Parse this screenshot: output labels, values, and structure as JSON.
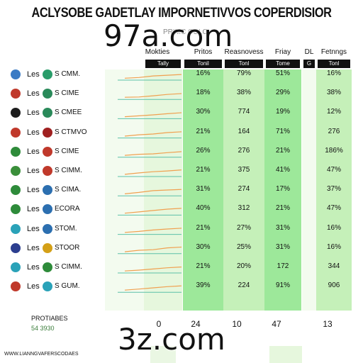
{
  "chart_data": {
    "type": "table",
    "title": "ACLYSOBE GADETLAY IMPORNETIVVOS COPERDISIOR",
    "subtitle": "PRIMC COLO",
    "columns": [
      {
        "header": "Mokties",
        "subheader": "Tally"
      },
      {
        "header": "Pritos",
        "subheader": "Tonil"
      },
      {
        "header": "Reasnovess",
        "subheader": "Tonl"
      },
      {
        "header": "Friay",
        "subheader": "Tome"
      },
      {
        "header": "DL",
        "subheader": "G"
      },
      {
        "header": "Fetnngs",
        "subheader": "Tonl"
      }
    ],
    "rows": [
      {
        "les": "Les",
        "team": "S CMM.",
        "trend": [
          0.05,
          0.12,
          0.28,
          0.35,
          0.42
        ],
        "vals": [
          "16%",
          "79%",
          "51%",
          "16%"
        ]
      },
      {
        "les": "Les",
        "team": "S CIME",
        "trend": [
          0.07,
          0.1,
          0.22,
          0.36,
          0.44
        ],
        "vals": [
          "18%",
          "38%",
          "29%",
          "38%"
        ]
      },
      {
        "les": "Les",
        "team": "S CMEE",
        "trend": [
          0.06,
          0.14,
          0.24,
          0.36,
          0.46
        ],
        "vals": [
          "30%",
          "774",
          "19%",
          "12%"
        ]
      },
      {
        "les": "Les",
        "team": "S CTMVO",
        "trend": [
          0.04,
          0.18,
          0.26,
          0.4,
          0.48
        ],
        "vals": [
          "21%",
          "164",
          "71%",
          "276"
        ]
      },
      {
        "les": "Les",
        "team": "S CIME",
        "trend": [
          0.05,
          0.16,
          0.2,
          0.32,
          0.42
        ],
        "vals": [
          "26%",
          "276",
          "21%",
          "186%"
        ]
      },
      {
        "les": "Les",
        "team": "S CIMM.",
        "trend": [
          0.08,
          0.22,
          0.34,
          0.42,
          0.52
        ],
        "vals": [
          "21%",
          "375",
          "41%",
          "47%"
        ]
      },
      {
        "les": "Les",
        "team": "S CIMA.",
        "trend": [
          0.06,
          0.2,
          0.38,
          0.44,
          0.5
        ],
        "vals": [
          "31%",
          "274",
          "17%",
          "37%"
        ]
      },
      {
        "les": "Les",
        "team": "ECORA",
        "trend": [
          0.05,
          0.18,
          0.32,
          0.46,
          0.54
        ],
        "vals": [
          "40%",
          "312",
          "21%",
          "47%"
        ]
      },
      {
        "les": "Les",
        "team": "STOM.",
        "trend": [
          0.06,
          0.16,
          0.3,
          0.4,
          0.48
        ],
        "vals": [
          "21%",
          "27%",
          "31%",
          "16%"
        ]
      },
      {
        "les": "Les",
        "team": "STOOR",
        "trend": [
          0.05,
          0.2,
          0.26,
          0.44,
          0.52
        ],
        "vals": [
          "30%",
          "25%",
          "31%",
          "16%"
        ]
      },
      {
        "les": "Les",
        "team": "S CIMM.",
        "trend": [
          0.06,
          0.14,
          0.26,
          0.38,
          0.46
        ],
        "vals": [
          "21%",
          "20%",
          "172",
          "344"
        ]
      },
      {
        "les": "Les",
        "team": "S GUM.",
        "trend": [
          0.07,
          0.18,
          0.3,
          0.42,
          0.5
        ],
        "vals": [
          "39%",
          "224",
          "91%",
          "906"
        ]
      }
    ],
    "footer_totals": [
      "0",
      "24",
      "10",
      "47",
      "13"
    ],
    "footer_left": [
      "PROTIABES",
      "54 3930"
    ],
    "credit": "WWW.LIANNGVAFERSCODAES",
    "colors": {
      "green_light": "#e6f7dd",
      "green_mid": "#c5f0b9",
      "green_strong": "#9de89a",
      "header_dark": "#111111",
      "trend_orange": "#f0a050",
      "trend_teal": "#5cc0a8"
    }
  },
  "watermarks": [
    "97a.com",
    "3z.com"
  ]
}
